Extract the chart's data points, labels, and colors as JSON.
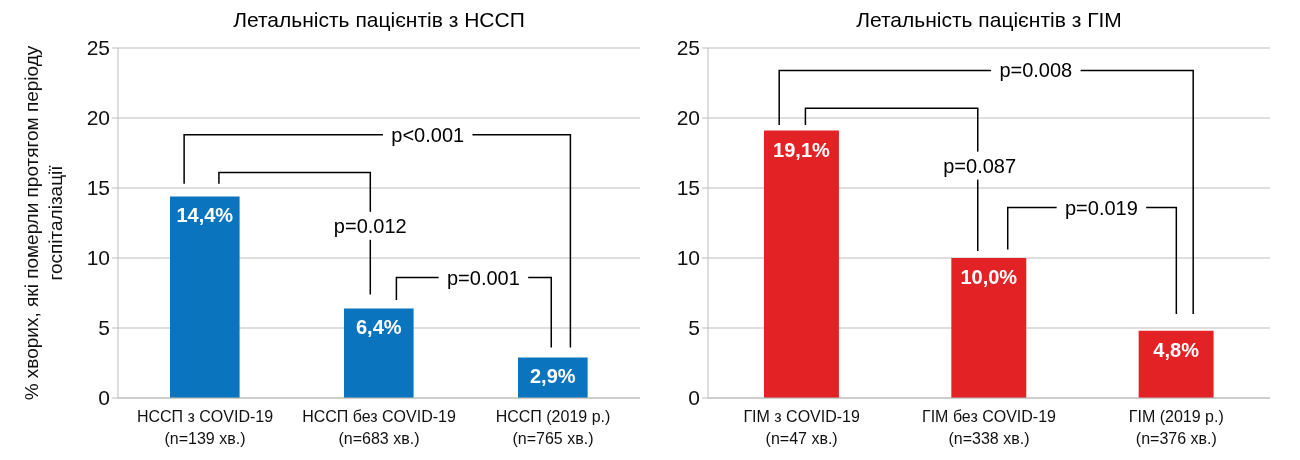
{
  "chart_data": [
    {
      "type": "bar",
      "title": "Летальність пацієнтів з НССП",
      "ylabel": "% хворих, які померли протягом періоду госпіталізації",
      "categories": [
        "НССП з COVID-19\n(n=139 хв.)",
        "НССП без COVID-19\n(n=683 хв.)",
        "НССП (2019 р.)\n(n=765 хв.)"
      ],
      "values": [
        14.4,
        6.4,
        2.9
      ],
      "value_labels": [
        "14,4%",
        "6,4%",
        "2,9%"
      ],
      "color": "#0a74be",
      "ylim": [
        0,
        25
      ],
      "yticks": [
        0,
        5,
        10,
        15,
        20,
        25
      ],
      "grid": "y",
      "annotations": [
        "p<0.001",
        "p=0.012",
        "p=0.001"
      ]
    },
    {
      "type": "bar",
      "title": "Летальність пацієнтів з ГІМ",
      "categories": [
        "ГІМ з COVID-19\n(n=47 хв.)",
        "ГІМ без COVID-19\n(n=338 хв.)",
        "ГІМ (2019 р.)\n(n=376 хв.)"
      ],
      "values": [
        19.1,
        10.0,
        4.8
      ],
      "value_labels": [
        "19,1%",
        "10,0%",
        "4,8%"
      ],
      "color": "#e32225",
      "ylim": [
        0,
        25
      ],
      "yticks": [
        0,
        5,
        10,
        15,
        20,
        25
      ],
      "grid": "y",
      "annotations": [
        "p=0.008",
        "p=0.087",
        "p=0.019"
      ]
    }
  ]
}
